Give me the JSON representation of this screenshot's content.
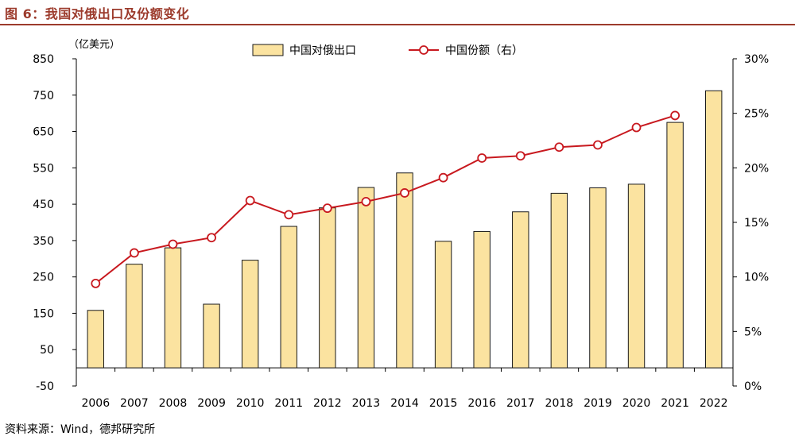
{
  "figure": {
    "title": "图 6：我国对俄出口及份额变化",
    "source": "资料来源：Wind，德邦研究所"
  },
  "chart_data": {
    "type": "bar",
    "categories": [
      "2006",
      "2007",
      "2008",
      "2009",
      "2010",
      "2011",
      "2012",
      "2013",
      "2014",
      "2015",
      "2016",
      "2017",
      "2018",
      "2019",
      "2020",
      "2021",
      "2022"
    ],
    "y_left": {
      "unit_label": "（亿美元）",
      "ylim": [
        -50,
        850
      ],
      "ticks": [
        -50,
        50,
        150,
        250,
        350,
        450,
        550,
        650,
        750,
        850
      ],
      "tick_labels": [
        "-50",
        "50",
        "150",
        "250",
        "350",
        "450",
        "550",
        "650",
        "750",
        "850"
      ]
    },
    "y_right": {
      "ylim": [
        0,
        30
      ],
      "ticks": [
        0,
        5,
        10,
        15,
        20,
        25,
        30
      ],
      "tick_labels": [
        "0%",
        "5%",
        "10%",
        "15%",
        "20%",
        "25%",
        "30%"
      ]
    },
    "series": [
      {
        "name": "中国对俄出口",
        "kind": "bar",
        "axis": "left",
        "color": "#fbe3a0",
        "stroke": "#1a1a1a",
        "values": [
          158,
          285,
          330,
          175,
          296,
          389,
          440,
          496,
          536,
          348,
          375,
          429,
          480,
          495,
          505,
          675,
          762
        ]
      },
      {
        "name": "中国份额（右）",
        "kind": "line",
        "axis": "right",
        "color": "#c8191f",
        "values": [
          9.4,
          12.2,
          13.0,
          13.6,
          17.0,
          15.7,
          16.3,
          16.9,
          17.7,
          19.1,
          20.9,
          21.1,
          21.9,
          22.1,
          23.7,
          24.8,
          null
        ]
      }
    ],
    "legend_position": "top-center",
    "grid": false
  }
}
